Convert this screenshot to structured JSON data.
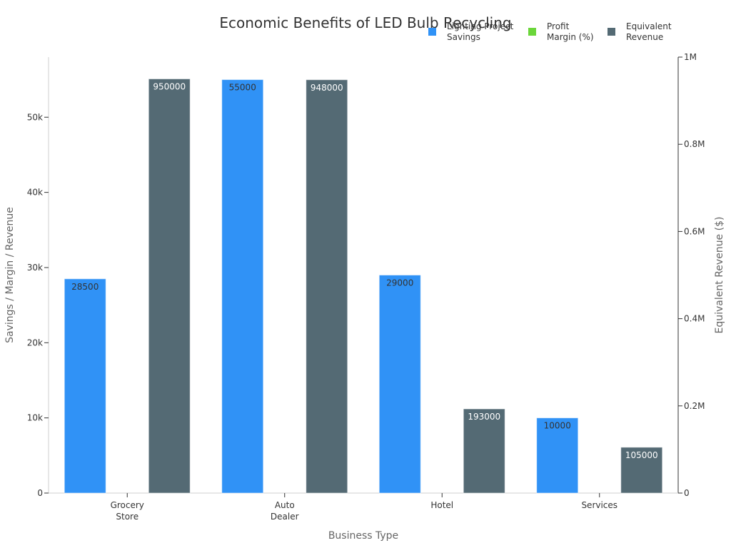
{
  "colors": {
    "savings": "#3092f6",
    "margin": "#6bd63a",
    "revenue": "#546a74",
    "axis": "#cfcfcf",
    "text": "#333333",
    "label": "#666666"
  },
  "chart_data": {
    "type": "bar",
    "title": "Economic Benefits of LED Bulb Recycling",
    "xlabel": "Business Type",
    "ylabel": "Savings / Margin / Revenue",
    "y2label": "Equivalent Revenue ($)",
    "categories": [
      "Grocery\nStore",
      "Auto\nDealer",
      "Hotel",
      "Services"
    ],
    "ylim": [
      0,
      58000
    ],
    "y2lim": [
      0,
      1000000
    ],
    "yticks": [
      0,
      10000,
      20000,
      30000,
      40000,
      50000
    ],
    "yticklabels": [
      "0",
      "10k",
      "20k",
      "30k",
      "40k",
      "50k"
    ],
    "y2ticks": [
      0,
      200000,
      400000,
      600000,
      800000,
      1000000
    ],
    "y2ticklabels": [
      "0",
      "0.2M",
      "0.4M",
      "0.6M",
      "0.8M",
      "1M"
    ],
    "legend_position": "top-right",
    "series": [
      {
        "name": "Lighting Project Savings",
        "axis": "left",
        "values": [
          28500,
          55000,
          29000,
          10000
        ]
      },
      {
        "name": "Profit Margin (%)",
        "axis": "left",
        "values": [
          0,
          0,
          0,
          0
        ]
      },
      {
        "name": "Equivalent Revenue",
        "axis": "right",
        "values": [
          950000,
          948000,
          193000,
          105000
        ]
      }
    ],
    "data_labels": [
      [
        "28500",
        "55000",
        "29000",
        "10000"
      ],
      [
        "",
        "",
        "",
        ""
      ],
      [
        "950000",
        "948000",
        "193000",
        "105000"
      ]
    ]
  },
  "legend": [
    {
      "label": "Lighting Project\nSavings"
    },
    {
      "label": "Profit\nMargin (%)"
    },
    {
      "label": "Equivalent\nRevenue"
    }
  ]
}
